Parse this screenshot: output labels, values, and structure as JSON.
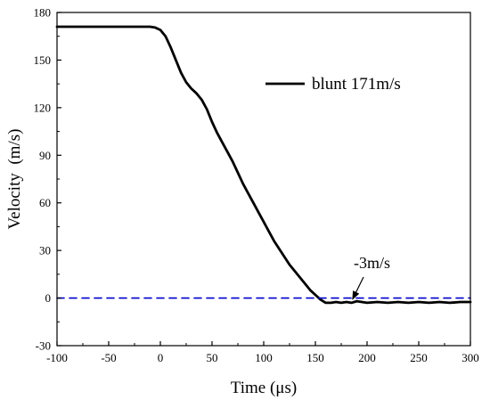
{
  "chart_data": {
    "type": "line",
    "xlabel": "Time (μs)",
    "ylabel": "Velocity  (m/s)",
    "xlim": [
      -100,
      300
    ],
    "ylim": [
      -30,
      180
    ],
    "xticks": [
      "-100",
      "-50",
      "0",
      "50",
      "100",
      "150",
      "200",
      "250",
      "300"
    ],
    "yticks": [
      "-30",
      "0",
      "30",
      "60",
      "90",
      "120",
      "150",
      "180"
    ],
    "grid": false,
    "legend_position": "upper-right",
    "series": [
      {
        "name": "blunt 171m/s",
        "color": "#000000",
        "style": "solid",
        "x": [
          -100,
          -80,
          -60,
          -40,
          -20,
          -10,
          -5,
          0,
          5,
          10,
          15,
          20,
          25,
          30,
          35,
          40,
          45,
          50,
          55,
          60,
          65,
          70,
          75,
          80,
          85,
          90,
          95,
          100,
          105,
          110,
          115,
          120,
          125,
          130,
          135,
          140,
          145,
          150,
          155,
          160,
          165,
          170,
          175,
          180,
          185,
          190,
          200,
          210,
          220,
          230,
          240,
          250,
          260,
          270,
          280,
          290,
          300
        ],
        "y": [
          171,
          171,
          171,
          171,
          171,
          171,
          170.5,
          169,
          165,
          158,
          150,
          142,
          136,
          132,
          129,
          125,
          119,
          111,
          104,
          98,
          92,
          86,
          79,
          72,
          66,
          60,
          54,
          48,
          42,
          36,
          31,
          26,
          21,
          17,
          13,
          9,
          5,
          2,
          -1,
          -3,
          -3,
          -2.5,
          -3,
          -2.5,
          -3,
          -2,
          -3,
          -2.5,
          -3,
          -2.5,
          -3,
          -2.5,
          -3,
          -2.5,
          -3,
          -2.5,
          -2.5
        ]
      },
      {
        "name": "",
        "color": "#0000cc",
        "style": "dashed",
        "x": [
          -100,
          300
        ],
        "y": [
          0,
          0
        ]
      }
    ],
    "annotations": [
      {
        "text": "-3m/s",
        "arrow_to": [
          186,
          -3
        ]
      }
    ]
  }
}
